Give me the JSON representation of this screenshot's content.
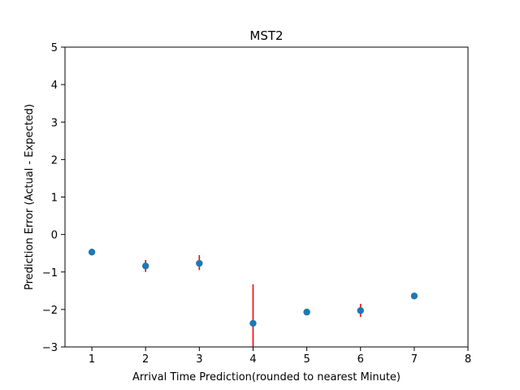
{
  "chart_data": {
    "type": "scatter",
    "title": "MST2",
    "xlabel": "Arrival Time Prediction(rounded to nearest Minute)",
    "ylabel": "Prediction Error (Actual - Expected)",
    "xlim": [
      0.5,
      8
    ],
    "ylim": [
      -3,
      5
    ],
    "xticks": [
      1,
      2,
      3,
      4,
      5,
      6,
      7,
      8
    ],
    "yticks": [
      -3,
      -2,
      -1,
      0,
      1,
      2,
      3,
      4,
      5
    ],
    "xtick_labels": [
      "1",
      "2",
      "3",
      "4",
      "5",
      "6",
      "7",
      "8"
    ],
    "ytick_labels": [
      "−3",
      "−2",
      "−1",
      "0",
      "1",
      "2",
      "3",
      "4",
      "5"
    ],
    "grid": false,
    "series": [
      {
        "marker_color": "#1f77b4",
        "errorbar_color": "#ff0000",
        "points": [
          {
            "x": 1,
            "y": -0.47,
            "err_low": -0.55,
            "err_high": -0.38
          },
          {
            "x": 2,
            "y": -0.84,
            "err_low": -1.0,
            "err_high": -0.68
          },
          {
            "x": 3,
            "y": -0.77,
            "err_low": -0.95,
            "err_high": -0.55
          },
          {
            "x": 4,
            "y": -2.37,
            "err_low": -3.0,
            "err_high": -1.33
          },
          {
            "x": 5,
            "y": -2.07,
            "err_low": -2.12,
            "err_high": -2.0
          },
          {
            "x": 6,
            "y": -2.03,
            "err_low": -2.2,
            "err_high": -1.85
          },
          {
            "x": 7,
            "y": -1.64,
            "err_low": -1.64,
            "err_high": -1.64
          }
        ]
      }
    ]
  }
}
